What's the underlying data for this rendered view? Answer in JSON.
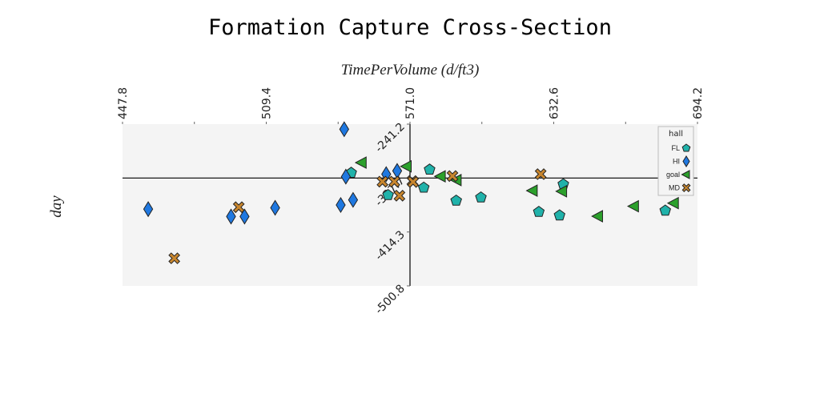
{
  "chart_data": {
    "type": "scatter",
    "title": "Formation Capture Cross-Section",
    "xlabel": "TimePerVolume (d/ft3)",
    "ylabel": "day",
    "xlim": [
      447.8,
      694.2
    ],
    "ylim": [
      -500.8,
      -241.2
    ],
    "x_ticks": [
      "447.8",
      "509.4",
      "571.0",
      "632.6",
      "694.2"
    ],
    "y_ticks": [
      "-241.2",
      "-327.7",
      "-414.3",
      "-500.8"
    ],
    "axis_crossing": {
      "x": 571.0,
      "y": -327.7
    },
    "grid": false,
    "legend": {
      "title": "hall",
      "position": "top-right"
    },
    "series": [
      {
        "name": "FL",
        "marker": "pentagon",
        "color": "#20b2aa",
        "x": [
          545.8,
          561.6,
          576.9,
          579.4,
          590.8,
          601.4,
          626.2,
          635.1,
          636.7,
          680.4
        ],
        "y": [
          -319.4,
          -355.0,
          -343.2,
          -314.2,
          -364.0,
          -358.9,
          -382.1,
          -387.7,
          -337.8,
          -380.0
        ]
      },
      {
        "name": "HI",
        "marker": "diamond",
        "color": "#1f78e0",
        "x": [
          542.8,
          458.8,
          513.2,
          500.1,
          494.3,
          546.6,
          541.3,
          543.5,
          560.8,
          565.5
        ],
        "y": [
          -249.4,
          -377.6,
          -375.5,
          -389.5,
          -389.5,
          -362.8,
          -371.0,
          -325.5,
          -321.5,
          -316.3
        ]
      },
      {
        "name": "goal",
        "marker": "triangle-left",
        "color": "#2ca02c",
        "x": [
          550.3,
          569.6,
          584.2,
          591.0,
          623.6,
          636.2,
          651.6,
          667.0,
          684.1
        ],
        "y": [
          -303.0,
          -309.0,
          -325.0,
          -331.0,
          -348.0,
          -349.0,
          -389.0,
          -373.0,
          -368.0
        ]
      },
      {
        "name": "MD",
        "marker": "x",
        "color": "#c8862e",
        "x": [
          470.0,
          497.6,
          559.2,
          564.3,
          566.5,
          572.0,
          589.2,
          627.0,
          572.3
        ],
        "y": [
          -456.5,
          -374.5,
          -333.5,
          -333.5,
          -356.0,
          -332.5,
          -324.5,
          -321.5,
          -334.0
        ]
      }
    ]
  }
}
